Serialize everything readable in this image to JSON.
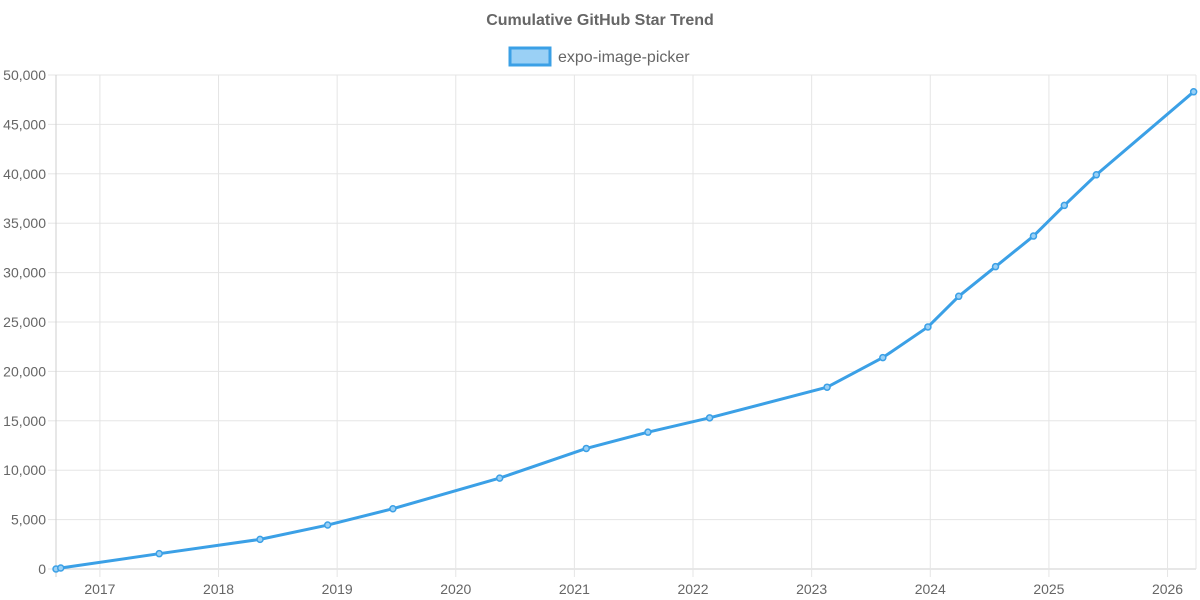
{
  "chart_data": {
    "type": "line",
    "title": "Cumulative GitHub Star Trend",
    "xlabel": "",
    "ylabel": "",
    "legend_position": "top",
    "grid": true,
    "series": [
      {
        "name": "expo-image-picker",
        "color": "#3ba0e6",
        "fill": "#9ad0f5",
        "points": [
          {
            "x": 2016.63,
            "y": 0
          },
          {
            "x": 2016.67,
            "y": 100
          },
          {
            "x": 2017.5,
            "y": 1550
          },
          {
            "x": 2018.35,
            "y": 3000
          },
          {
            "x": 2018.92,
            "y": 4450
          },
          {
            "x": 2019.47,
            "y": 6100
          },
          {
            "x": 2020.37,
            "y": 9200
          },
          {
            "x": 2021.1,
            "y": 12200
          },
          {
            "x": 2021.62,
            "y": 13850
          },
          {
            "x": 2022.14,
            "y": 15300
          },
          {
            "x": 2023.13,
            "y": 18400
          },
          {
            "x": 2023.6,
            "y": 21400
          },
          {
            "x": 2023.98,
            "y": 24500
          },
          {
            "x": 2024.24,
            "y": 27600
          },
          {
            "x": 2024.55,
            "y": 30600
          },
          {
            "x": 2024.87,
            "y": 33700
          },
          {
            "x": 2025.13,
            "y": 36800
          },
          {
            "x": 2025.4,
            "y": 39900
          },
          {
            "x": 2026.22,
            "y": 48300
          }
        ]
      }
    ],
    "x_ticks": [
      {
        "value": 2017,
        "label": "2017"
      },
      {
        "value": 2018,
        "label": "2018"
      },
      {
        "value": 2019,
        "label": "2019"
      },
      {
        "value": 2020,
        "label": "2020"
      },
      {
        "value": 2021,
        "label": "2021"
      },
      {
        "value": 2022,
        "label": "2022"
      },
      {
        "value": 2023,
        "label": "2023"
      },
      {
        "value": 2024,
        "label": "2024"
      },
      {
        "value": 2025,
        "label": "2025"
      },
      {
        "value": 2026,
        "label": "2026"
      }
    ],
    "y_ticks": [
      {
        "value": 0,
        "label": "0"
      },
      {
        "value": 5000,
        "label": "5,000"
      },
      {
        "value": 10000,
        "label": "10,000"
      },
      {
        "value": 15000,
        "label": "15,000"
      },
      {
        "value": 20000,
        "label": "20,000"
      },
      {
        "value": 25000,
        "label": "25,000"
      },
      {
        "value": 30000,
        "label": "30,000"
      },
      {
        "value": 35000,
        "label": "35,000"
      },
      {
        "value": 40000,
        "label": "40,000"
      },
      {
        "value": 45000,
        "label": "45,000"
      },
      {
        "value": 50000,
        "label": "50,000"
      }
    ],
    "xlim": [
      2016.63,
      2026.24
    ],
    "ylim": [
      0,
      50000
    ]
  }
}
